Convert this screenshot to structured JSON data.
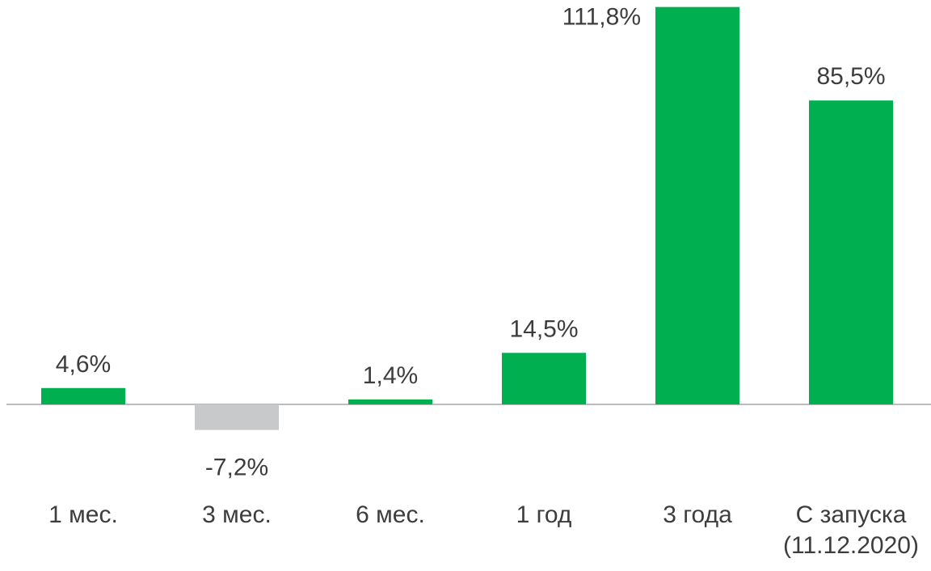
{
  "chart_data": {
    "type": "bar",
    "categories": [
      "1 мес.",
      "3 мес.",
      "6 мес.",
      "1 год",
      "3 года",
      "С запуска (11.12.2020)"
    ],
    "category_lines": [
      [
        "1 мес."
      ],
      [
        "3 мес."
      ],
      [
        "6 мес."
      ],
      [
        "1 год"
      ],
      [
        "3 года"
      ],
      [
        "С запуска",
        "(11.12.2020)"
      ]
    ],
    "values": [
      4.6,
      -7.2,
      1.4,
      14.5,
      111.8,
      85.5
    ],
    "value_labels": [
      "4,6%",
      "-7,2%",
      "1,4%",
      "14,5%",
      "111,8%",
      "85,5%"
    ],
    "title": "",
    "xlabel": "",
    "ylabel": "",
    "ylim": [
      -7.2,
      121
    ],
    "grid": false,
    "legend": "none",
    "colors": {
      "positive": "#00b050",
      "negative": "#c8c9cb",
      "axis": "#a6a6a6",
      "text": "#3d3d3d"
    }
  }
}
